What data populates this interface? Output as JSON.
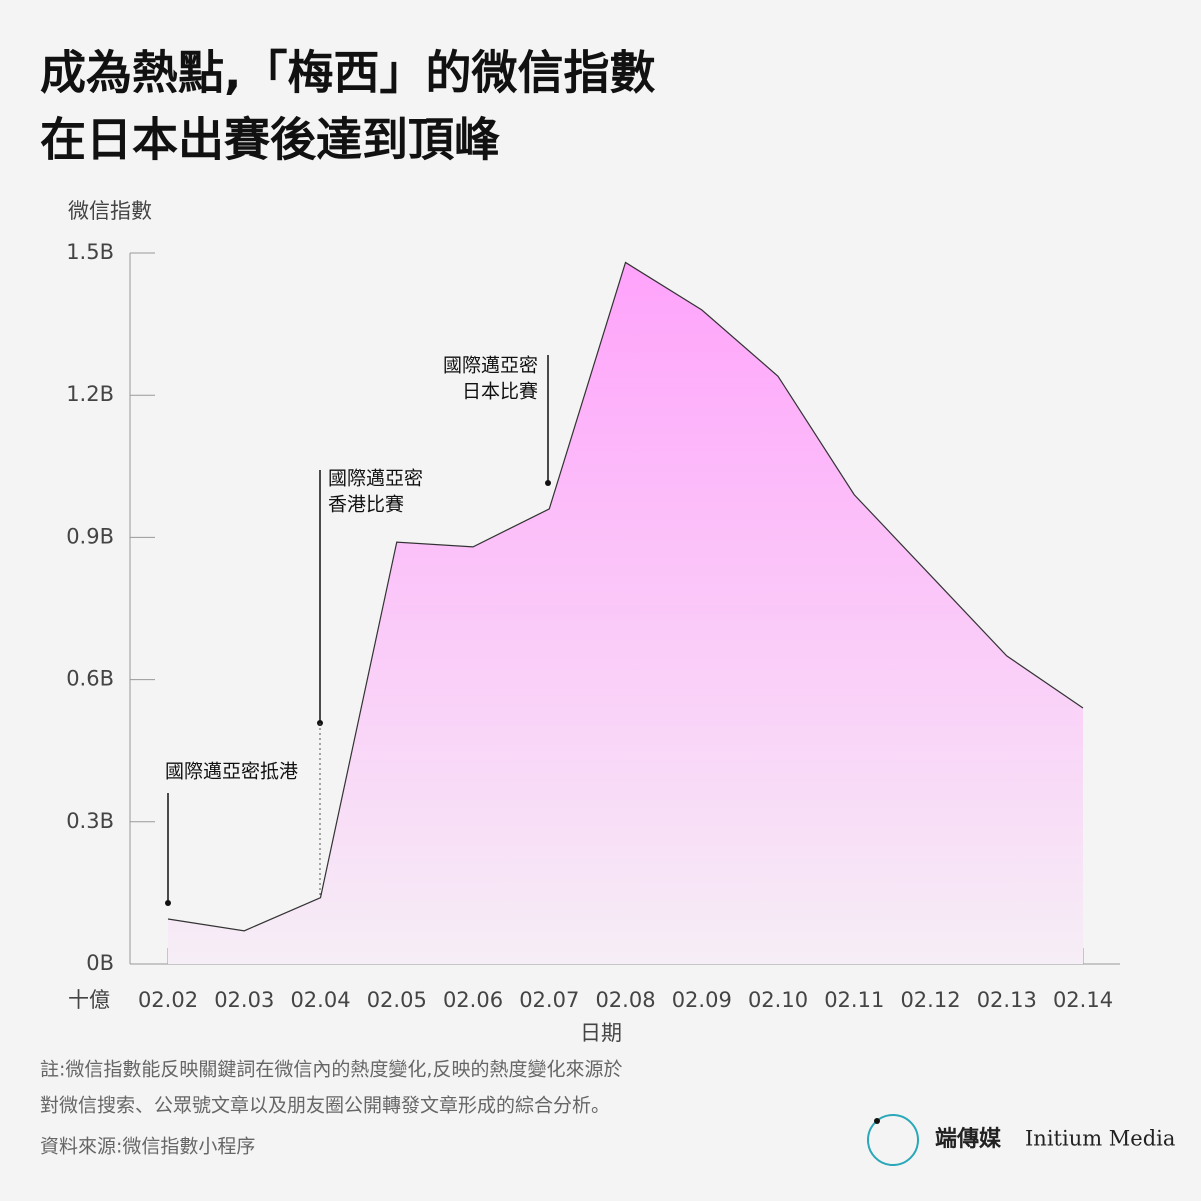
{
  "chart_data": {
    "type": "area",
    "title": [
      "成為熱點,「梅西」的微信指數",
      "在日本出賽後達到頂峰"
    ],
    "y_label": "微信指數",
    "y_unit": "十億",
    "x_label": "日期",
    "categories": [
      "02.02",
      "02.03",
      "02.04",
      "02.05",
      "02.06",
      "02.07",
      "02.08",
      "02.09",
      "02.10",
      "02.11",
      "02.12",
      "02.13",
      "02.14"
    ],
    "values": [
      0.095,
      0.07,
      0.14,
      0.89,
      0.88,
      0.96,
      1.48,
      1.38,
      1.24,
      0.99,
      0.82,
      0.65,
      0.54
    ],
    "color": "#ffa3fb",
    "ylim": [
      0,
      1.5
    ],
    "yticks": [
      {
        "value": 0,
        "label": "0B"
      },
      {
        "value": 0.3,
        "label": "0.3B"
      },
      {
        "value": 0.6,
        "label": "0.6B"
      },
      {
        "value": 0.9,
        "label": "0.9B"
      },
      {
        "value": 1.2,
        "label": "1.2B"
      },
      {
        "value": 1.5,
        "label": "1.5B"
      }
    ],
    "annotations": [
      [
        "國際邁亞密抵港"
      ],
      [
        "國際邁亞密",
        "香港比賽"
      ],
      [
        "國際邁亞密",
        "日本比賽"
      ]
    ],
    "notes": [
      "註:微信指數能反映關鍵詞在微信內的熱度變化,反映的熱度變化來源於",
      "對微信搜索、公眾號文章以及朋友圈公開轉發文章形成的綜合分析。"
    ],
    "source": "資料來源:微信指數小程序",
    "logo": [
      "端傳媒",
      "Initium Media"
    ]
  }
}
